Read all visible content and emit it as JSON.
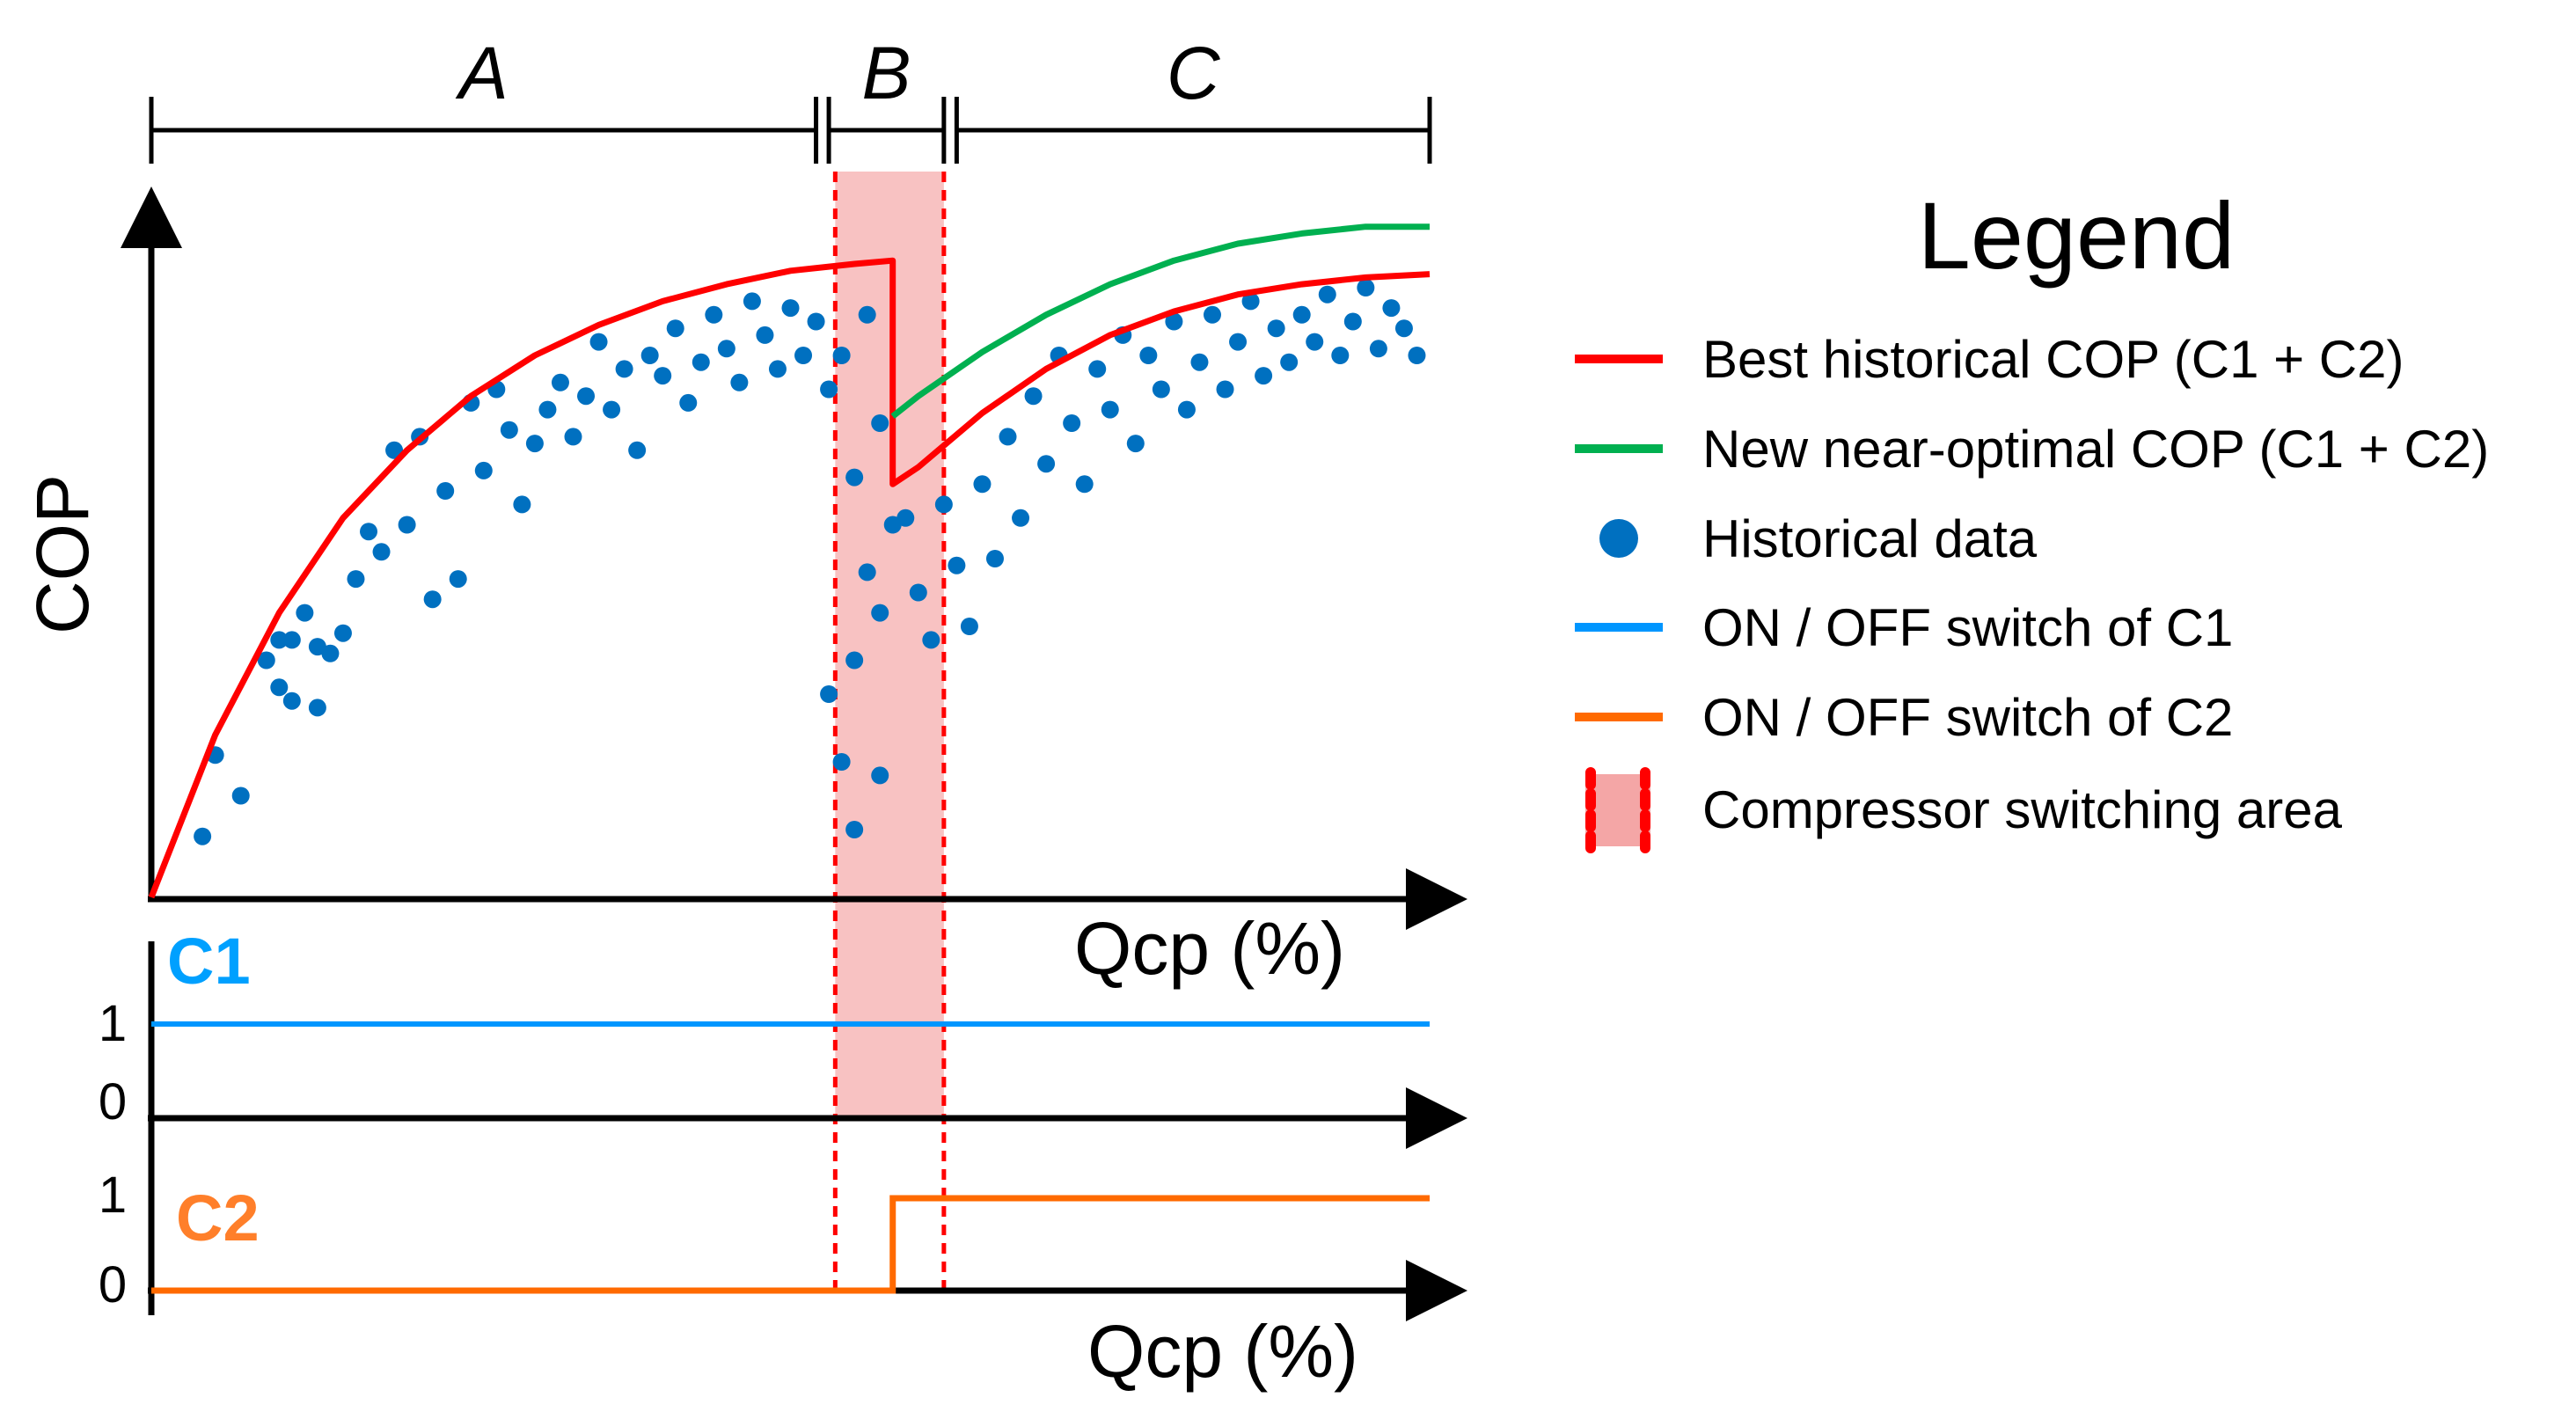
{
  "chart_data": {
    "type": "line",
    "title": "",
    "ylabel": "COP",
    "xlabel": "Qcp (%)",
    "xlim": [
      0,
      100
    ],
    "ylim": [
      0,
      100
    ],
    "sections": [
      {
        "name": "A",
        "from": 0,
        "to": 52
      },
      {
        "name": "B",
        "from": 53,
        "to": 62
      },
      {
        "name": "C",
        "from": 63,
        "to": 100
      }
    ],
    "switching_area": {
      "from": 53.5,
      "to": 62
    },
    "series": [
      {
        "name": "Best historical COP (C1 + C2)",
        "color": "#ff0000",
        "x": [
          0,
          5,
          10,
          15,
          20,
          25,
          30,
          35,
          40,
          45,
          50,
          55,
          58,
          58,
          58,
          60,
          65,
          70,
          75,
          80,
          85,
          90,
          95,
          100
        ],
        "y": [
          0,
          24,
          42,
          56,
          66,
          74,
          80,
          84.5,
          88,
          90.5,
          92.5,
          93.5,
          94,
          71,
          61,
          63.5,
          71.5,
          78,
          83,
          86.5,
          89,
          90.5,
          91.5,
          92
        ]
      },
      {
        "name": "New near-optimal COP (C1 + C2)",
        "color": "#00b050",
        "x": [
          58,
          60,
          65,
          70,
          75,
          80,
          85,
          90,
          95,
          100
        ],
        "y": [
          71,
          74,
          80.5,
          86,
          90.5,
          94,
          96.5,
          98,
          99,
          99
        ]
      },
      {
        "name": "Historical data",
        "color": "#0070c0",
        "points": [
          [
            4,
            9
          ],
          [
            5,
            21
          ],
          [
            7,
            15
          ],
          [
            9,
            35
          ],
          [
            10,
            31
          ],
          [
            11,
            38
          ],
          [
            12,
            42
          ],
          [
            13,
            28
          ],
          [
            10,
            38
          ],
          [
            11,
            29
          ],
          [
            13,
            37
          ],
          [
            14,
            36
          ],
          [
            15,
            39
          ],
          [
            16,
            47
          ],
          [
            17,
            54
          ],
          [
            18,
            51
          ],
          [
            19,
            66
          ],
          [
            20,
            55
          ],
          [
            21,
            68
          ],
          [
            22,
            44
          ],
          [
            23,
            60
          ],
          [
            24,
            47
          ],
          [
            25,
            73
          ],
          [
            26,
            63
          ],
          [
            27,
            75
          ],
          [
            28,
            69
          ],
          [
            29,
            58
          ],
          [
            30,
            67
          ],
          [
            31,
            72
          ],
          [
            32,
            76
          ],
          [
            33,
            68
          ],
          [
            34,
            74
          ],
          [
            35,
            82
          ],
          [
            36,
            72
          ],
          [
            37,
            78
          ],
          [
            38,
            66
          ],
          [
            39,
            80
          ],
          [
            40,
            77
          ],
          [
            41,
            84
          ],
          [
            42,
            73
          ],
          [
            43,
            79
          ],
          [
            44,
            86
          ],
          [
            45,
            81
          ],
          [
            46,
            76
          ],
          [
            47,
            88
          ],
          [
            48,
            83
          ],
          [
            49,
            78
          ],
          [
            50,
            87
          ],
          [
            51,
            80
          ],
          [
            52,
            85
          ],
          [
            53,
            75
          ],
          [
            55,
            35
          ],
          [
            56,
            48
          ],
          [
            57,
            42
          ],
          [
            55,
            62
          ],
          [
            58,
            55
          ],
          [
            54,
            80
          ],
          [
            56,
            86
          ],
          [
            57,
            70
          ],
          [
            59,
            56
          ],
          [
            60,
            45
          ],
          [
            61,
            38
          ],
          [
            62,
            58
          ],
          [
            63,
            49
          ],
          [
            64,
            40
          ],
          [
            65,
            61
          ],
          [
            66,
            50
          ],
          [
            67,
            68
          ],
          [
            68,
            56
          ],
          [
            69,
            74
          ],
          [
            70,
            64
          ],
          [
            71,
            80
          ],
          [
            72,
            70
          ],
          [
            73,
            61
          ],
          [
            74,
            78
          ],
          [
            75,
            72
          ],
          [
            76,
            83
          ],
          [
            77,
            67
          ],
          [
            78,
            80
          ],
          [
            79,
            75
          ],
          [
            80,
            85
          ],
          [
            81,
            72
          ],
          [
            82,
            79
          ],
          [
            83,
            86
          ],
          [
            84,
            75
          ],
          [
            85,
            82
          ],
          [
            86,
            88
          ],
          [
            87,
            77
          ],
          [
            88,
            84
          ],
          [
            89,
            79
          ],
          [
            90,
            86
          ],
          [
            91,
            82
          ],
          [
            92,
            89
          ],
          [
            93,
            80
          ],
          [
            94,
            85
          ],
          [
            95,
            90
          ],
          [
            96,
            81
          ],
          [
            97,
            87
          ],
          [
            98,
            84
          ],
          [
            99,
            80
          ],
          [
            53,
            30
          ],
          [
            54,
            20
          ],
          [
            55,
            10
          ],
          [
            57,
            18
          ]
        ]
      },
      {
        "name": "ON / OFF switch of C1",
        "color": "#0096ff",
        "x": [
          0,
          100
        ],
        "y": [
          1,
          1
        ]
      },
      {
        "name": "ON / OFF switch of C2",
        "color": "#ff6a00",
        "x": [
          0,
          58,
          58,
          100
        ],
        "y": [
          0,
          0,
          1,
          1
        ]
      }
    ],
    "switch_panels": [
      {
        "name": "C1",
        "tick_labels": [
          "1",
          "0"
        ],
        "color": "#00a0ff"
      },
      {
        "name": "C2",
        "tick_labels": [
          "1",
          "0"
        ],
        "color": "#ff7f2a"
      }
    ],
    "legend": {
      "title": "Legend",
      "placement": "right",
      "entries": [
        "Best historical COP (C1 + C2)",
        "New near-optimal COP (C1 + C2)",
        "Historical data",
        "ON / OFF switch of C1",
        "ON / OFF switch of C2",
        "Compressor switching area"
      ]
    },
    "bottom_xlabel": "Qcp (%)"
  }
}
